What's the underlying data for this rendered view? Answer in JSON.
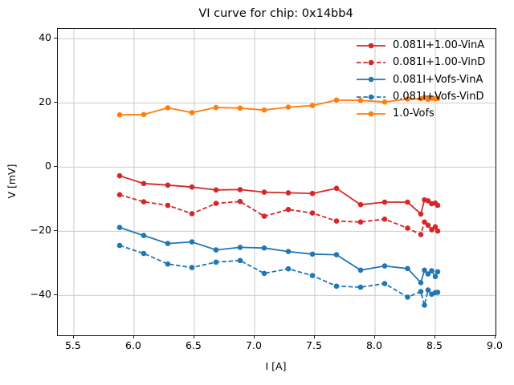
{
  "title": "VI curve for chip: 0x14bb4",
  "xlabel": "I [A]",
  "ylabel": "V [mV]",
  "x_ticks": [
    "5.5",
    "6.0",
    "6.5",
    "7.0",
    "7.5",
    "8.0",
    "8.5",
    "9.0"
  ],
  "y_ticks": [
    "40",
    "20",
    "0",
    "−20",
    "−40"
  ],
  "colors": {
    "red": "#d62728",
    "blue": "#1f77b4",
    "orange": "#ff7f0e",
    "grid": "#cbcbcb",
    "spine": "#1a1a1a"
  },
  "chart_data": {
    "type": "line",
    "title": "VI curve for chip: 0x14bb4",
    "xlabel": "I [A]",
    "ylabel": "V [mV]",
    "xlim": [
      5.367,
      9.0
    ],
    "ylim": [
      -52.4,
      43.1
    ],
    "x_tick_values": [
      5.5,
      6.0,
      6.5,
      7.0,
      7.5,
      8.0,
      8.5,
      9.0
    ],
    "y_tick_values": [
      40,
      20,
      0,
      -20,
      -40
    ],
    "grid": true,
    "legend_position": "upper right",
    "legend_frame": false,
    "x": [
      5.88,
      6.08,
      6.28,
      6.48,
      6.68,
      6.88,
      7.08,
      7.28,
      7.48,
      7.68,
      7.88,
      8.08,
      8.27,
      8.38,
      8.41,
      8.44,
      8.47,
      8.5,
      8.52
    ],
    "series": [
      {
        "name": "0.081I+1.00-VinA",
        "color": "#d62728",
        "style": "solid",
        "values": [
          -2.7,
          -5.1,
          -5.6,
          -6.2,
          -7.1,
          -7.0,
          -7.8,
          -8.0,
          -8.2,
          -6.6,
          -11.7,
          -10.9,
          -10.9,
          -14.6,
          -10.2,
          -10.5,
          -11.4,
          -11.2,
          -11.9
        ]
      },
      {
        "name": "0.081I+1.00-VinD",
        "color": "#d62728",
        "style": "dashed",
        "values": [
          -8.6,
          -10.8,
          -11.9,
          -14.5,
          -11.3,
          -10.7,
          -15.3,
          -13.2,
          -14.3,
          -16.8,
          -17.1,
          -16.2,
          -19.0,
          -21.0,
          -17.1,
          -18.1,
          -19.5,
          -18.6,
          -19.9
        ]
      },
      {
        "name": "0.081I+Vofs-VinA",
        "color": "#1f77b4",
        "style": "solid",
        "values": [
          -18.8,
          -21.3,
          -23.8,
          -23.3,
          -25.8,
          -25.0,
          -25.2,
          -26.3,
          -27.1,
          -27.3,
          -32.1,
          -30.8,
          -31.6,
          -36.0,
          -32.1,
          -33.3,
          -32.3,
          -34.1,
          -32.6
        ]
      },
      {
        "name": "0.081I+Vofs-VinD",
        "color": "#1f77b4",
        "style": "dashed",
        "values": [
          -24.4,
          -26.9,
          -30.2,
          -31.3,
          -29.6,
          -29.1,
          -33.1,
          -31.7,
          -33.8,
          -37.1,
          -37.4,
          -36.3,
          -40.5,
          -38.8,
          -43.0,
          -38.3,
          -39.6,
          -39.1,
          -39.0
        ]
      },
      {
        "name": "1.0-Vofs",
        "color": "#ff7f0e",
        "style": "solid",
        "values": [
          16.3,
          16.4,
          18.5,
          17.0,
          18.6,
          18.4,
          17.8,
          18.7,
          19.2,
          20.9,
          20.8,
          20.3,
          21.2,
          21.3,
          21.7,
          21.1,
          21.5,
          21.3,
          21.4
        ]
      }
    ]
  }
}
